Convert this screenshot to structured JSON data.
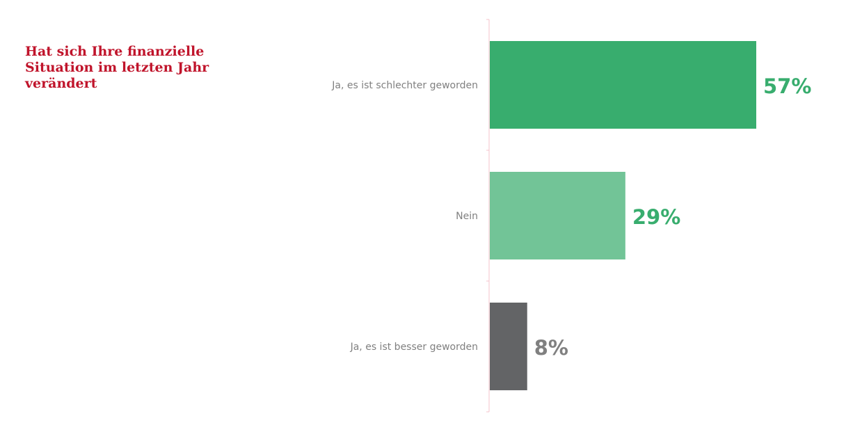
{
  "chart_data": {
    "type": "bar",
    "orientation": "horizontal",
    "title": "Hat sich Ihre finanzielle Situation im letzten Jahr verändert",
    "categories": [
      "Ja, es ist schlechter geworden",
      "Nein",
      "Ja, es ist besser geworden"
    ],
    "values": [
      57,
      29,
      8
    ],
    "value_labels": [
      "57%",
      "29%",
      "8%"
    ],
    "unit": "%",
    "xlim": [
      0,
      100
    ],
    "grid": false,
    "legend": "none"
  },
  "colors": {
    "title": "#c0142b",
    "axis": "#f4c3cb",
    "bars": [
      "#38ad6e",
      "#72c497",
      "#636466"
    ],
    "value_labels": [
      "#38ad6e",
      "#38ad6e",
      "#808080"
    ],
    "category_labels": "#808080"
  }
}
